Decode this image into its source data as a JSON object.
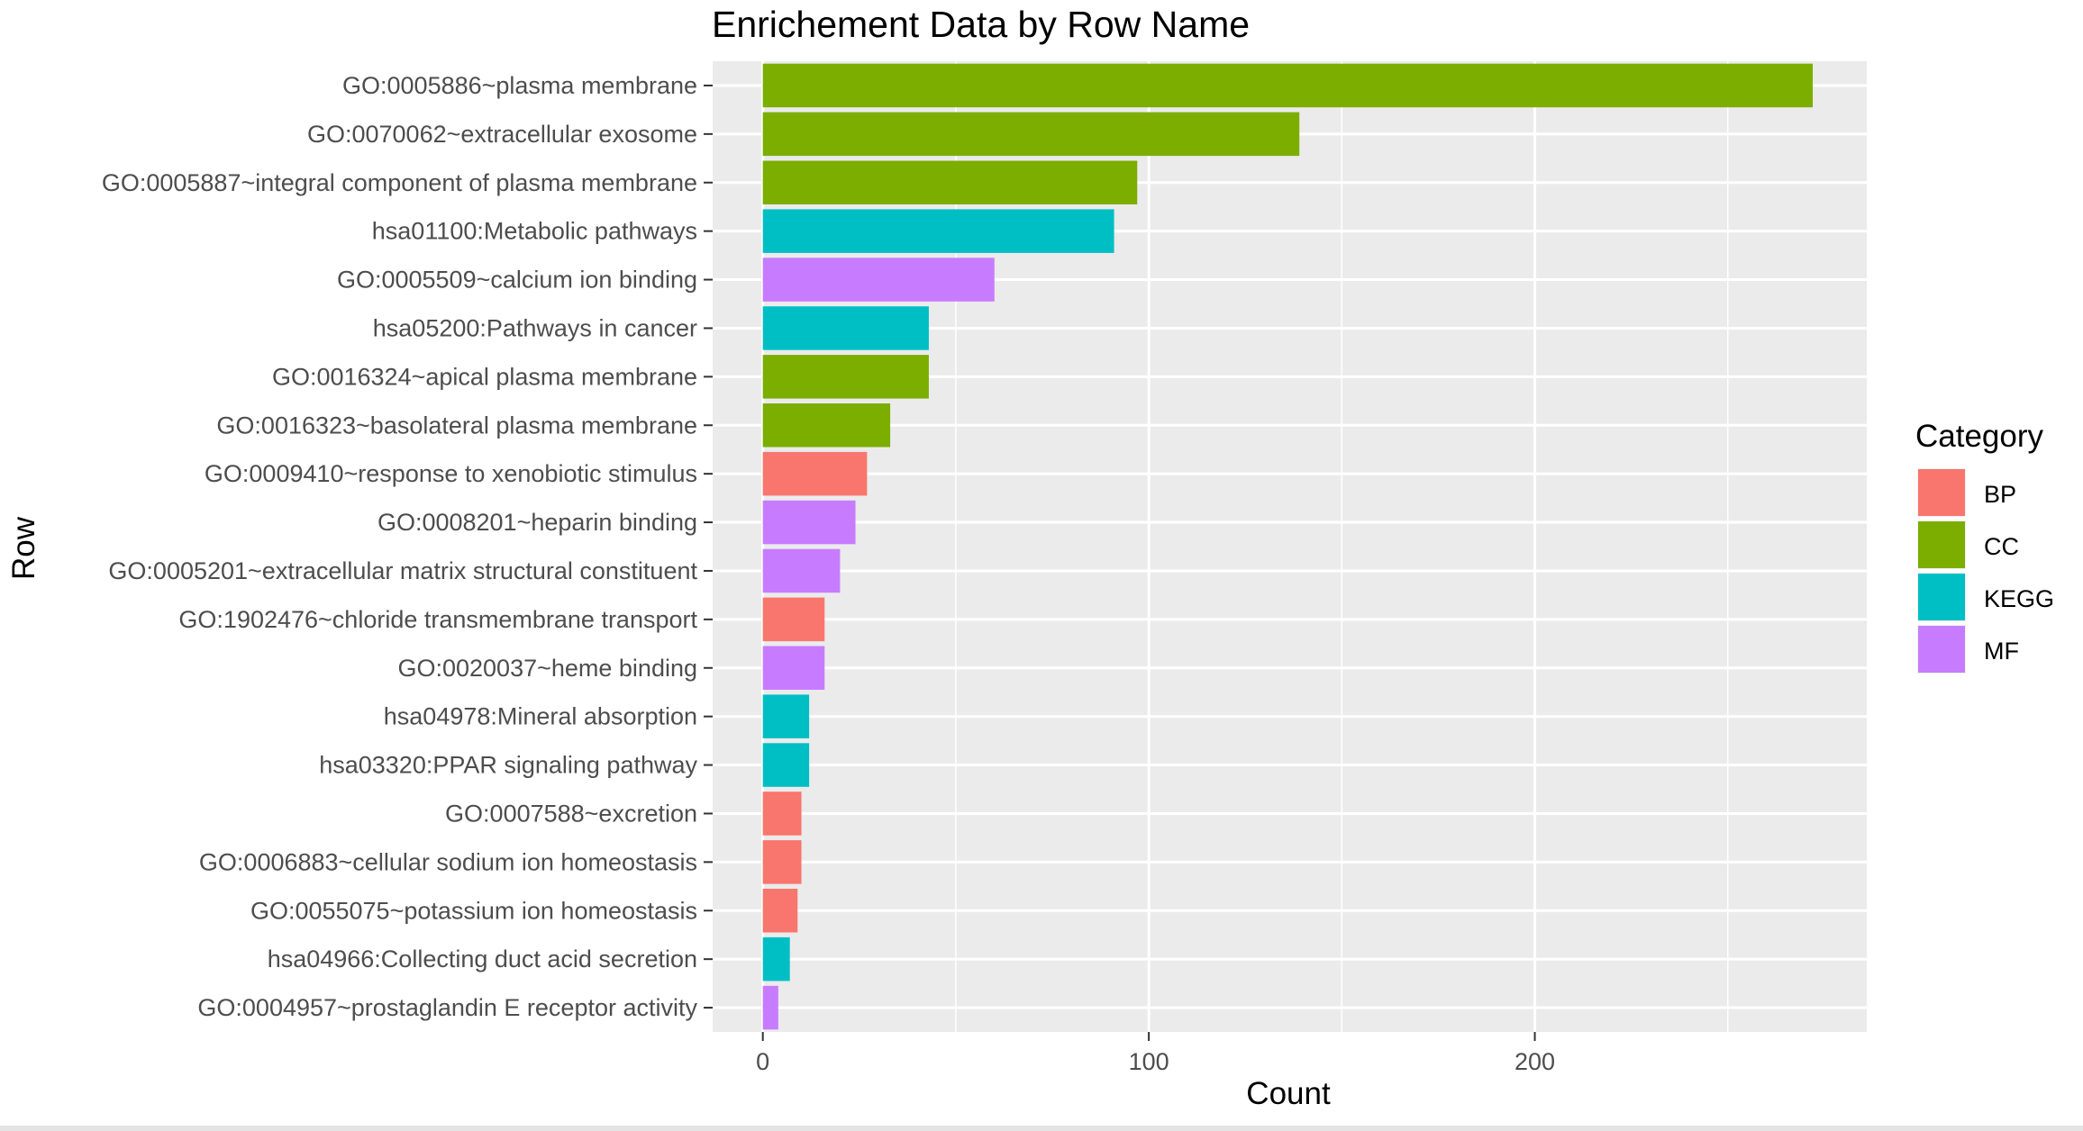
{
  "chart_data": {
    "type": "bar",
    "orientation": "horizontal",
    "title": "Enrichement Data by Row Name",
    "xlabel": "Count",
    "ylabel": "Row",
    "xlim": [
      -13,
      286
    ],
    "xticks": [
      0,
      100,
      200
    ],
    "grid": true,
    "legend_position": "right",
    "legend_title": "Category",
    "categories_legend": [
      {
        "name": "BP",
        "color": "#F8766D"
      },
      {
        "name": "CC",
        "color": "#7CAE00"
      },
      {
        "name": "KEGG",
        "color": "#00BFC4"
      },
      {
        "name": "MF",
        "color": "#C77CFF"
      }
    ],
    "rows": [
      {
        "label": "GO:0005886~plasma membrane",
        "value": 272,
        "category": "CC"
      },
      {
        "label": "GO:0070062~extracellular exosome",
        "value": 139,
        "category": "CC"
      },
      {
        "label": "GO:0005887~integral component of plasma membrane",
        "value": 97,
        "category": "CC"
      },
      {
        "label": "hsa01100:Metabolic pathways",
        "value": 91,
        "category": "KEGG"
      },
      {
        "label": "GO:0005509~calcium ion binding",
        "value": 60,
        "category": "MF"
      },
      {
        "label": "hsa05200:Pathways in cancer",
        "value": 43,
        "category": "KEGG"
      },
      {
        "label": "GO:0016324~apical plasma membrane",
        "value": 43,
        "category": "CC"
      },
      {
        "label": "GO:0016323~basolateral plasma membrane",
        "value": 33,
        "category": "CC"
      },
      {
        "label": "GO:0009410~response to xenobiotic stimulus",
        "value": 27,
        "category": "BP"
      },
      {
        "label": "GO:0008201~heparin binding",
        "value": 24,
        "category": "MF"
      },
      {
        "label": "GO:0005201~extracellular matrix structural constituent",
        "value": 20,
        "category": "MF"
      },
      {
        "label": "GO:1902476~chloride transmembrane transport",
        "value": 16,
        "category": "BP"
      },
      {
        "label": "GO:0020037~heme binding",
        "value": 16,
        "category": "MF"
      },
      {
        "label": "hsa04978:Mineral absorption",
        "value": 12,
        "category": "KEGG"
      },
      {
        "label": "hsa03320:PPAR signaling pathway",
        "value": 12,
        "category": "KEGG"
      },
      {
        "label": "GO:0007588~excretion",
        "value": 10,
        "category": "BP"
      },
      {
        "label": "GO:0006883~cellular sodium ion homeostasis",
        "value": 10,
        "category": "BP"
      },
      {
        "label": "GO:0055075~potassium ion homeostasis",
        "value": 9,
        "category": "BP"
      },
      {
        "label": "hsa04966:Collecting duct acid secretion",
        "value": 7,
        "category": "KEGG"
      },
      {
        "label": "GO:0004957~prostaglandin E receptor activity",
        "value": 4,
        "category": "MF"
      }
    ]
  }
}
